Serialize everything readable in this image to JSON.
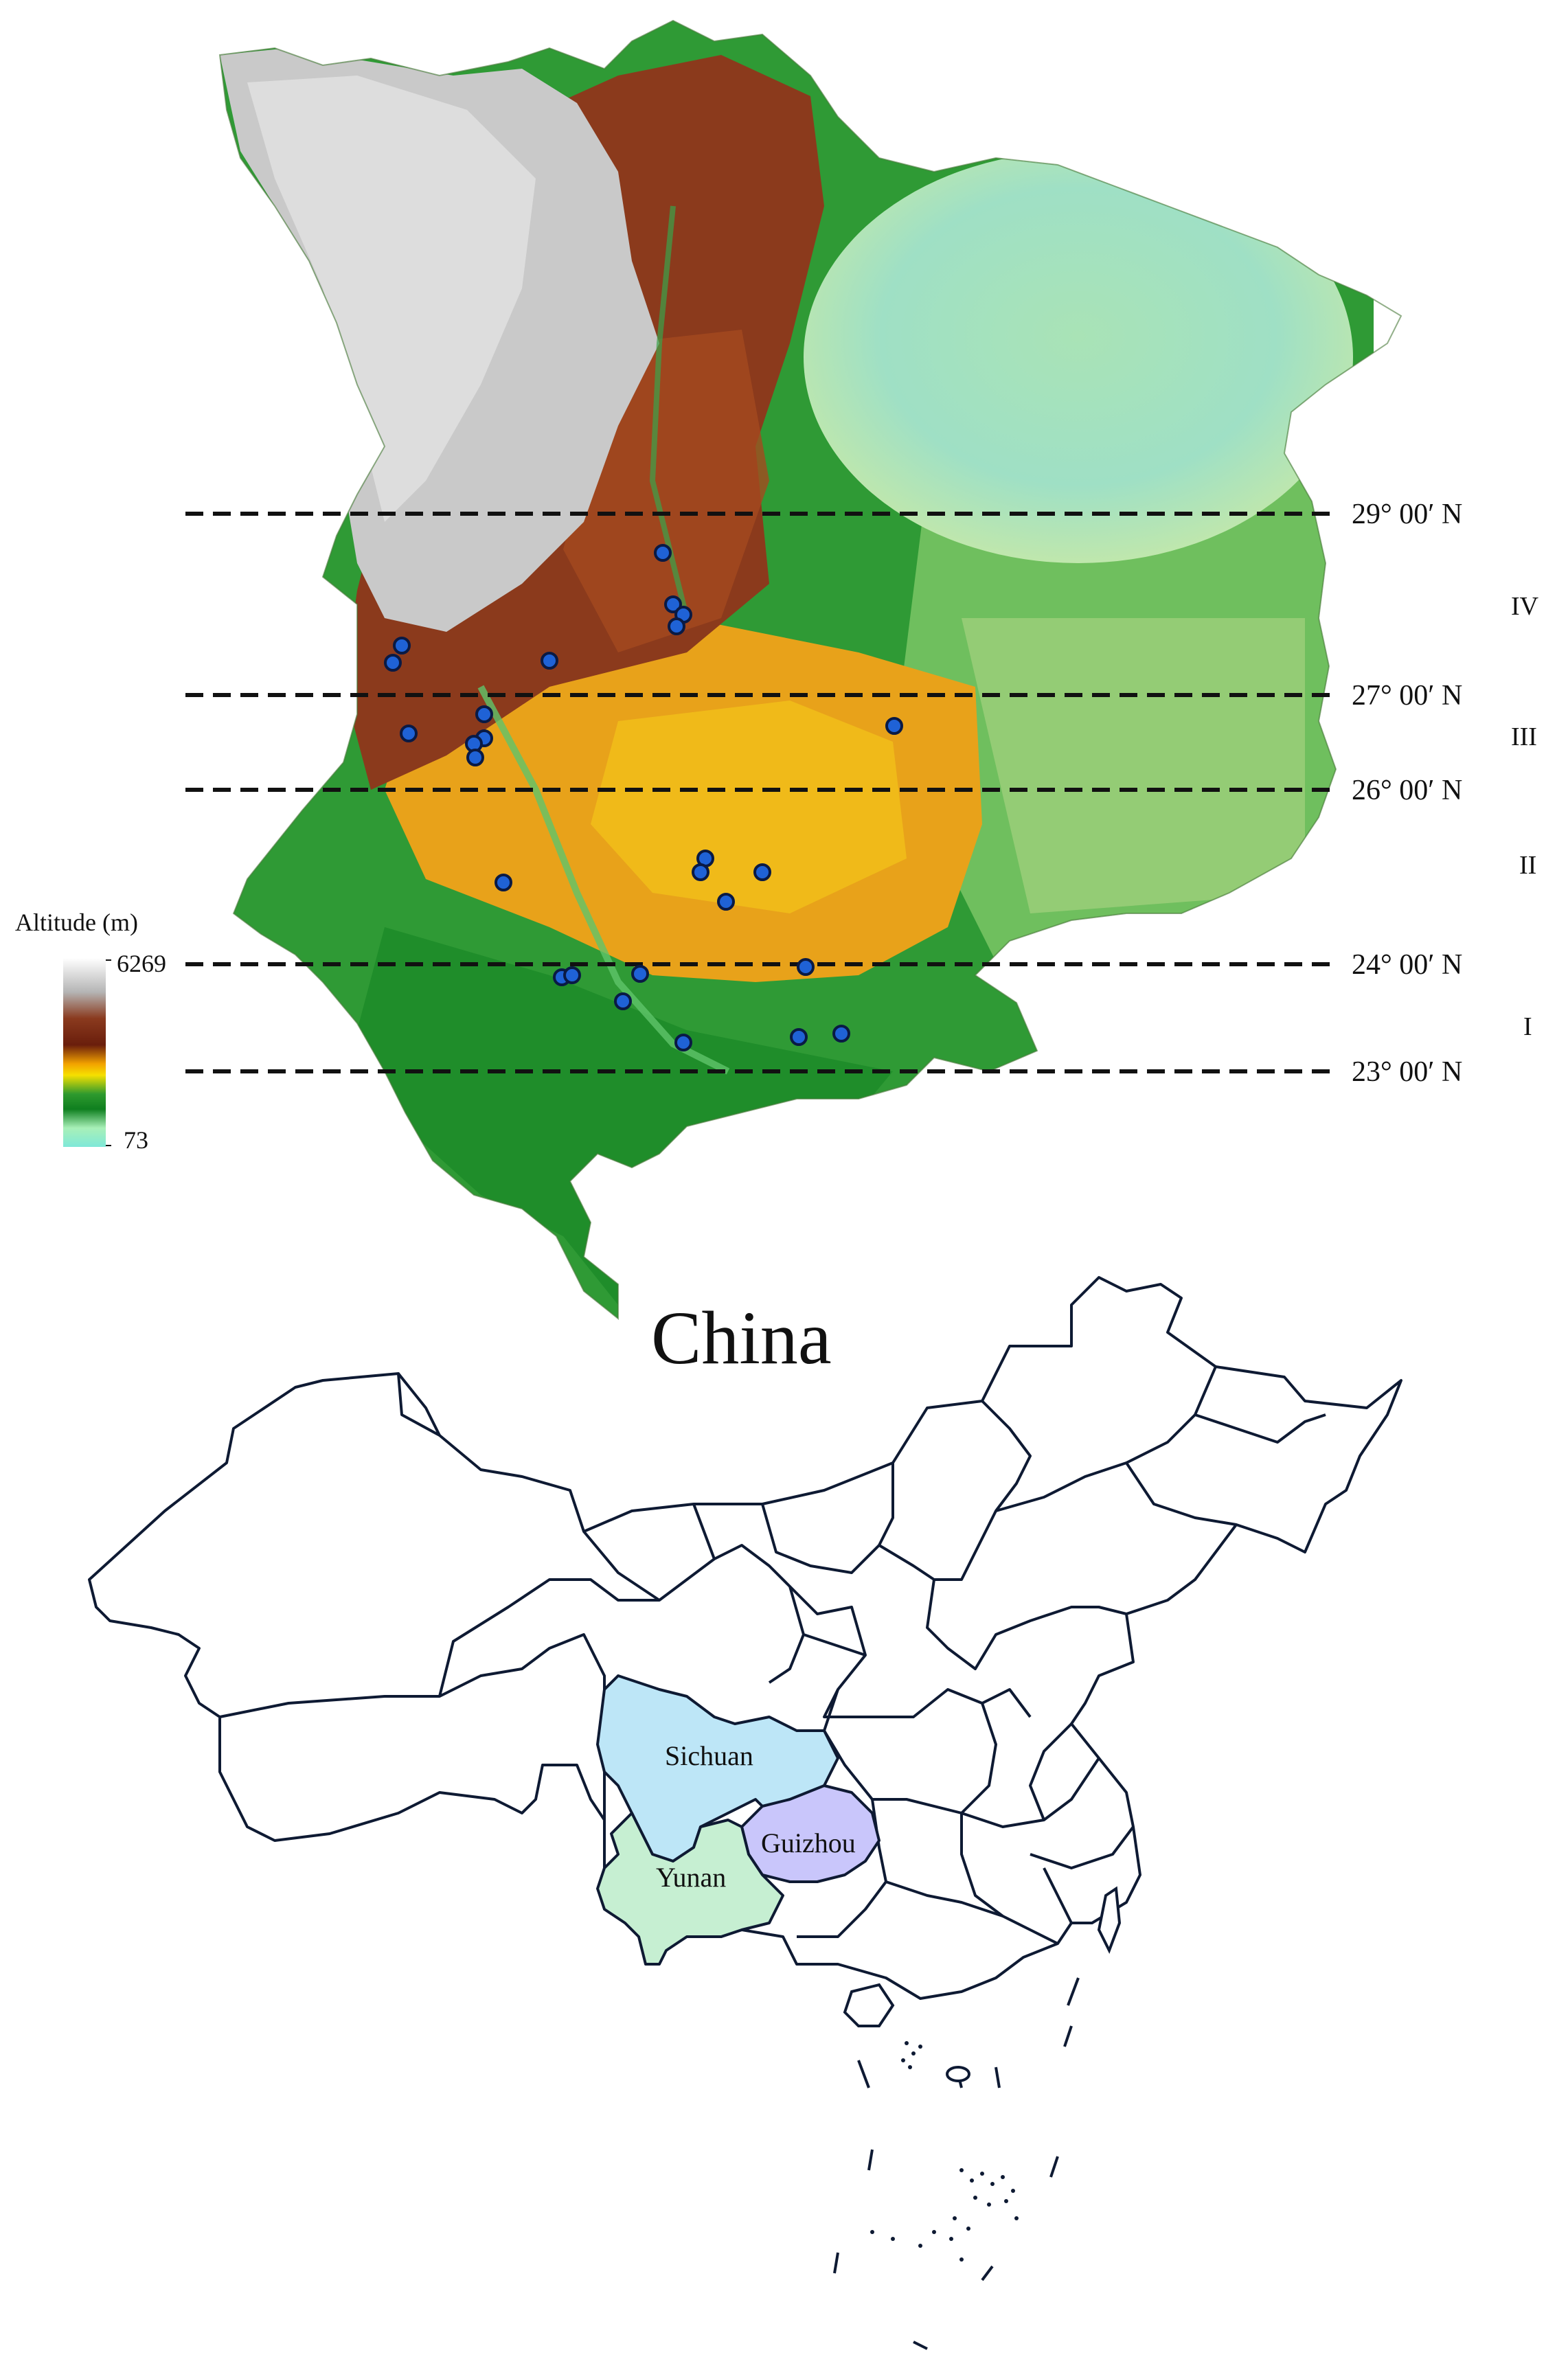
{
  "legend": {
    "title": "Altitude (m)",
    "max_label": "6269",
    "min_label": "73",
    "colors": [
      "#ffffff",
      "#b9b9b9",
      "#8a3a1e",
      "#6a1e0c",
      "#f2a200",
      "#f6e000",
      "#2e9a2e",
      "#0f7f1f",
      "#a8f0b8",
      "#7fe8d8"
    ]
  },
  "latitude_lines": [
    {
      "label": "29°  00′ N"
    },
    {
      "label": "27°  00′ N"
    },
    {
      "label": "26°  00′ N"
    },
    {
      "label": "24°  00′ N"
    },
    {
      "label": "23°  00′ N"
    }
  ],
  "zones": [
    {
      "label": "IV"
    },
    {
      "label": "III"
    },
    {
      "label": "II"
    },
    {
      "label": "I"
    }
  ],
  "china_map": {
    "title": "China",
    "provinces": [
      {
        "name": "Sichuan",
        "color": "#bde6f7"
      },
      {
        "name": "Guizhou",
        "color": "#c9c6fb"
      },
      {
        "name": "Yunan",
        "color": "#c6efd2"
      }
    ]
  },
  "colors": {
    "sample_point": "#1f62d6",
    "sample_point_stroke": "#0a1a44",
    "high_altitude": "#c8c8c8",
    "mid_altitude": "#e39a1a",
    "low_altitude": "#2e9a2e",
    "basin": "#9ee3c4"
  }
}
